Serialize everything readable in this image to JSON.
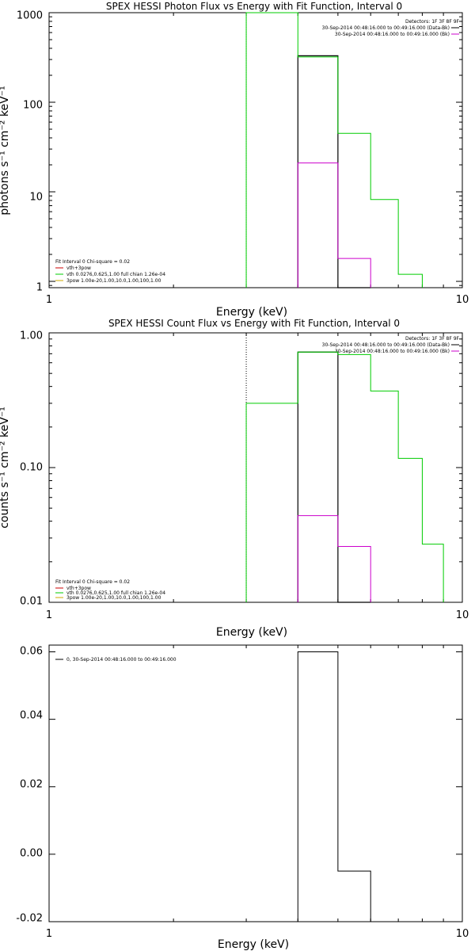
{
  "chart_data": [
    {
      "type": "line",
      "title": "SPEX HESSI Photon Flux vs Energy with Fit Function, Interval 0",
      "xlabel": "Energy (keV)",
      "ylabel": "photons s⁻¹ cm⁻² keV⁻¹",
      "xscale": "log",
      "yscale": "log",
      "xlim": [
        1,
        10
      ],
      "ylim": [
        0.85,
        1000
      ],
      "x_ticks": [
        {
          "value": 1,
          "label": "1"
        },
        {
          "value": 10,
          "label": "10"
        }
      ],
      "y_ticks": [
        {
          "value": 1,
          "label": "1"
        },
        {
          "value": 10,
          "label": "10"
        },
        {
          "value": 100,
          "label": "100"
        },
        {
          "value": 1000,
          "label": "1000"
        }
      ],
      "legend_right": [
        {
          "text": "Detectors: 1F 3F 8F 9F",
          "color": "#000000"
        },
        {
          "text": "30-Sep-2014 00:48:16.000 to 00:49:16.000 (Data-Bk)",
          "color": "#000000"
        },
        {
          "text": "30-Sep-2014 00:48:16.000 to 00:49:16.000 (Bk)",
          "color": "#cc00cc"
        }
      ],
      "legend_left": [
        {
          "text": "Fit Interval 0   Chi-square = 0.02",
          "color": "#000000"
        },
        {
          "text": "vth+3pow",
          "color": "#cc0000"
        },
        {
          "text": "vth 0.0276,0.625,1.00  full chian 1.26e-04",
          "color": "#00cc00"
        },
        {
          "text": "3pow 1.00e-20,1.00,10.0,1.00,100,1.00",
          "color": "#ccaa00"
        }
      ],
      "vline_energy": 3.0,
      "vline_color": "#00cc00",
      "series": [
        {
          "color": "#000000",
          "width": 1.2,
          "edges": [
            4,
            5,
            6
          ],
          "values": [
            330,
            0.85
          ]
        },
        {
          "color": "#00cc00",
          "width": 1,
          "edges": [
            3,
            4,
            5,
            6,
            7,
            8
          ],
          "values": [
            1000,
            320,
            45,
            8.2,
            1.2
          ]
        },
        {
          "color": "#cc00cc",
          "width": 1,
          "edges": [
            4,
            5,
            6
          ],
          "values": [
            21,
            1.8
          ]
        }
      ]
    },
    {
      "type": "line",
      "title": "SPEX HESSI Count Flux vs Energy with Fit Function, Interval 0",
      "xlabel": "Energy (keV)",
      "ylabel": "counts s⁻¹ cm⁻² keV⁻¹",
      "xscale": "log",
      "yscale": "log",
      "xlim": [
        1,
        10
      ],
      "ylim": [
        0.01,
        1.0
      ],
      "x_ticks": [
        {
          "value": 1,
          "label": "1"
        },
        {
          "value": 10,
          "label": "10"
        }
      ],
      "y_ticks": [
        {
          "value": 0.01,
          "label": "0.01"
        },
        {
          "value": 0.1,
          "label": "0.10"
        },
        {
          "value": 1.0,
          "label": "1.00"
        }
      ],
      "legend_right": [
        {
          "text": "Detectors: 1F 3F 8F 9F",
          "color": "#000000"
        },
        {
          "text": "30-Sep-2014 00:48:16.000 to 00:49:16.000 (Data-Bk)",
          "color": "#000000"
        },
        {
          "text": "30-Sep-2014 00:48:16.000 to 00:49:16.000 (Bk)",
          "color": "#cc00cc"
        }
      ],
      "legend_left": [
        {
          "text": "Fit Interval 0   Chi-square = 0.02",
          "color": "#000000"
        },
        {
          "text": "vth+3pow",
          "color": "#cc0000"
        },
        {
          "text": "vth 0.0276,0.625,1.00  full chian 1.26e-04",
          "color": "#00cc00"
        },
        {
          "text": "3pow 1.00e-20,1.00,10.0,1.00,100,1.00",
          "color": "#ccaa00"
        }
      ],
      "vline_energy": 3.0,
      "vline_color": "#000000",
      "series": [
        {
          "color": "#000000",
          "width": 1.2,
          "edges": [
            4,
            5,
            6
          ],
          "values": [
            0.72,
            0.01
          ]
        },
        {
          "color": "#00cc00",
          "width": 1,
          "edges": [
            3,
            4,
            5,
            6,
            7,
            8,
            9
          ],
          "values": [
            0.3,
            0.72,
            0.69,
            0.37,
            0.117,
            0.027
          ]
        },
        {
          "color": "#cc00cc",
          "width": 1,
          "edges": [
            4,
            5,
            6
          ],
          "values": [
            0.044,
            0.026
          ]
        }
      ]
    },
    {
      "type": "line",
      "title": "",
      "xlabel": "Energy (keV)",
      "ylabel": "",
      "xscale": "log",
      "yscale": "linear",
      "xlim": [
        1,
        10
      ],
      "ylim": [
        -0.02,
        0.062
      ],
      "x_ticks": [
        {
          "value": 1,
          "label": "1"
        },
        {
          "value": 10,
          "label": "10"
        }
      ],
      "y_ticks": [
        {
          "value": -0.02,
          "label": "-0.02"
        },
        {
          "value": 0.0,
          "label": "0.00"
        },
        {
          "value": 0.02,
          "label": "0.02"
        },
        {
          "value": 0.04,
          "label": "0.04"
        },
        {
          "value": 0.06,
          "label": "0.06"
        }
      ],
      "legend_right": [],
      "legend_left": [
        {
          "text": "0, 30-Sep-2014 00:48:16.000 to 00:49:16.000",
          "color": "#000000"
        }
      ],
      "series": [
        {
          "color": "#000000",
          "width": 1,
          "edges": [
            4,
            5,
            6
          ],
          "values": [
            0.06,
            -0.005
          ]
        }
      ]
    }
  ]
}
